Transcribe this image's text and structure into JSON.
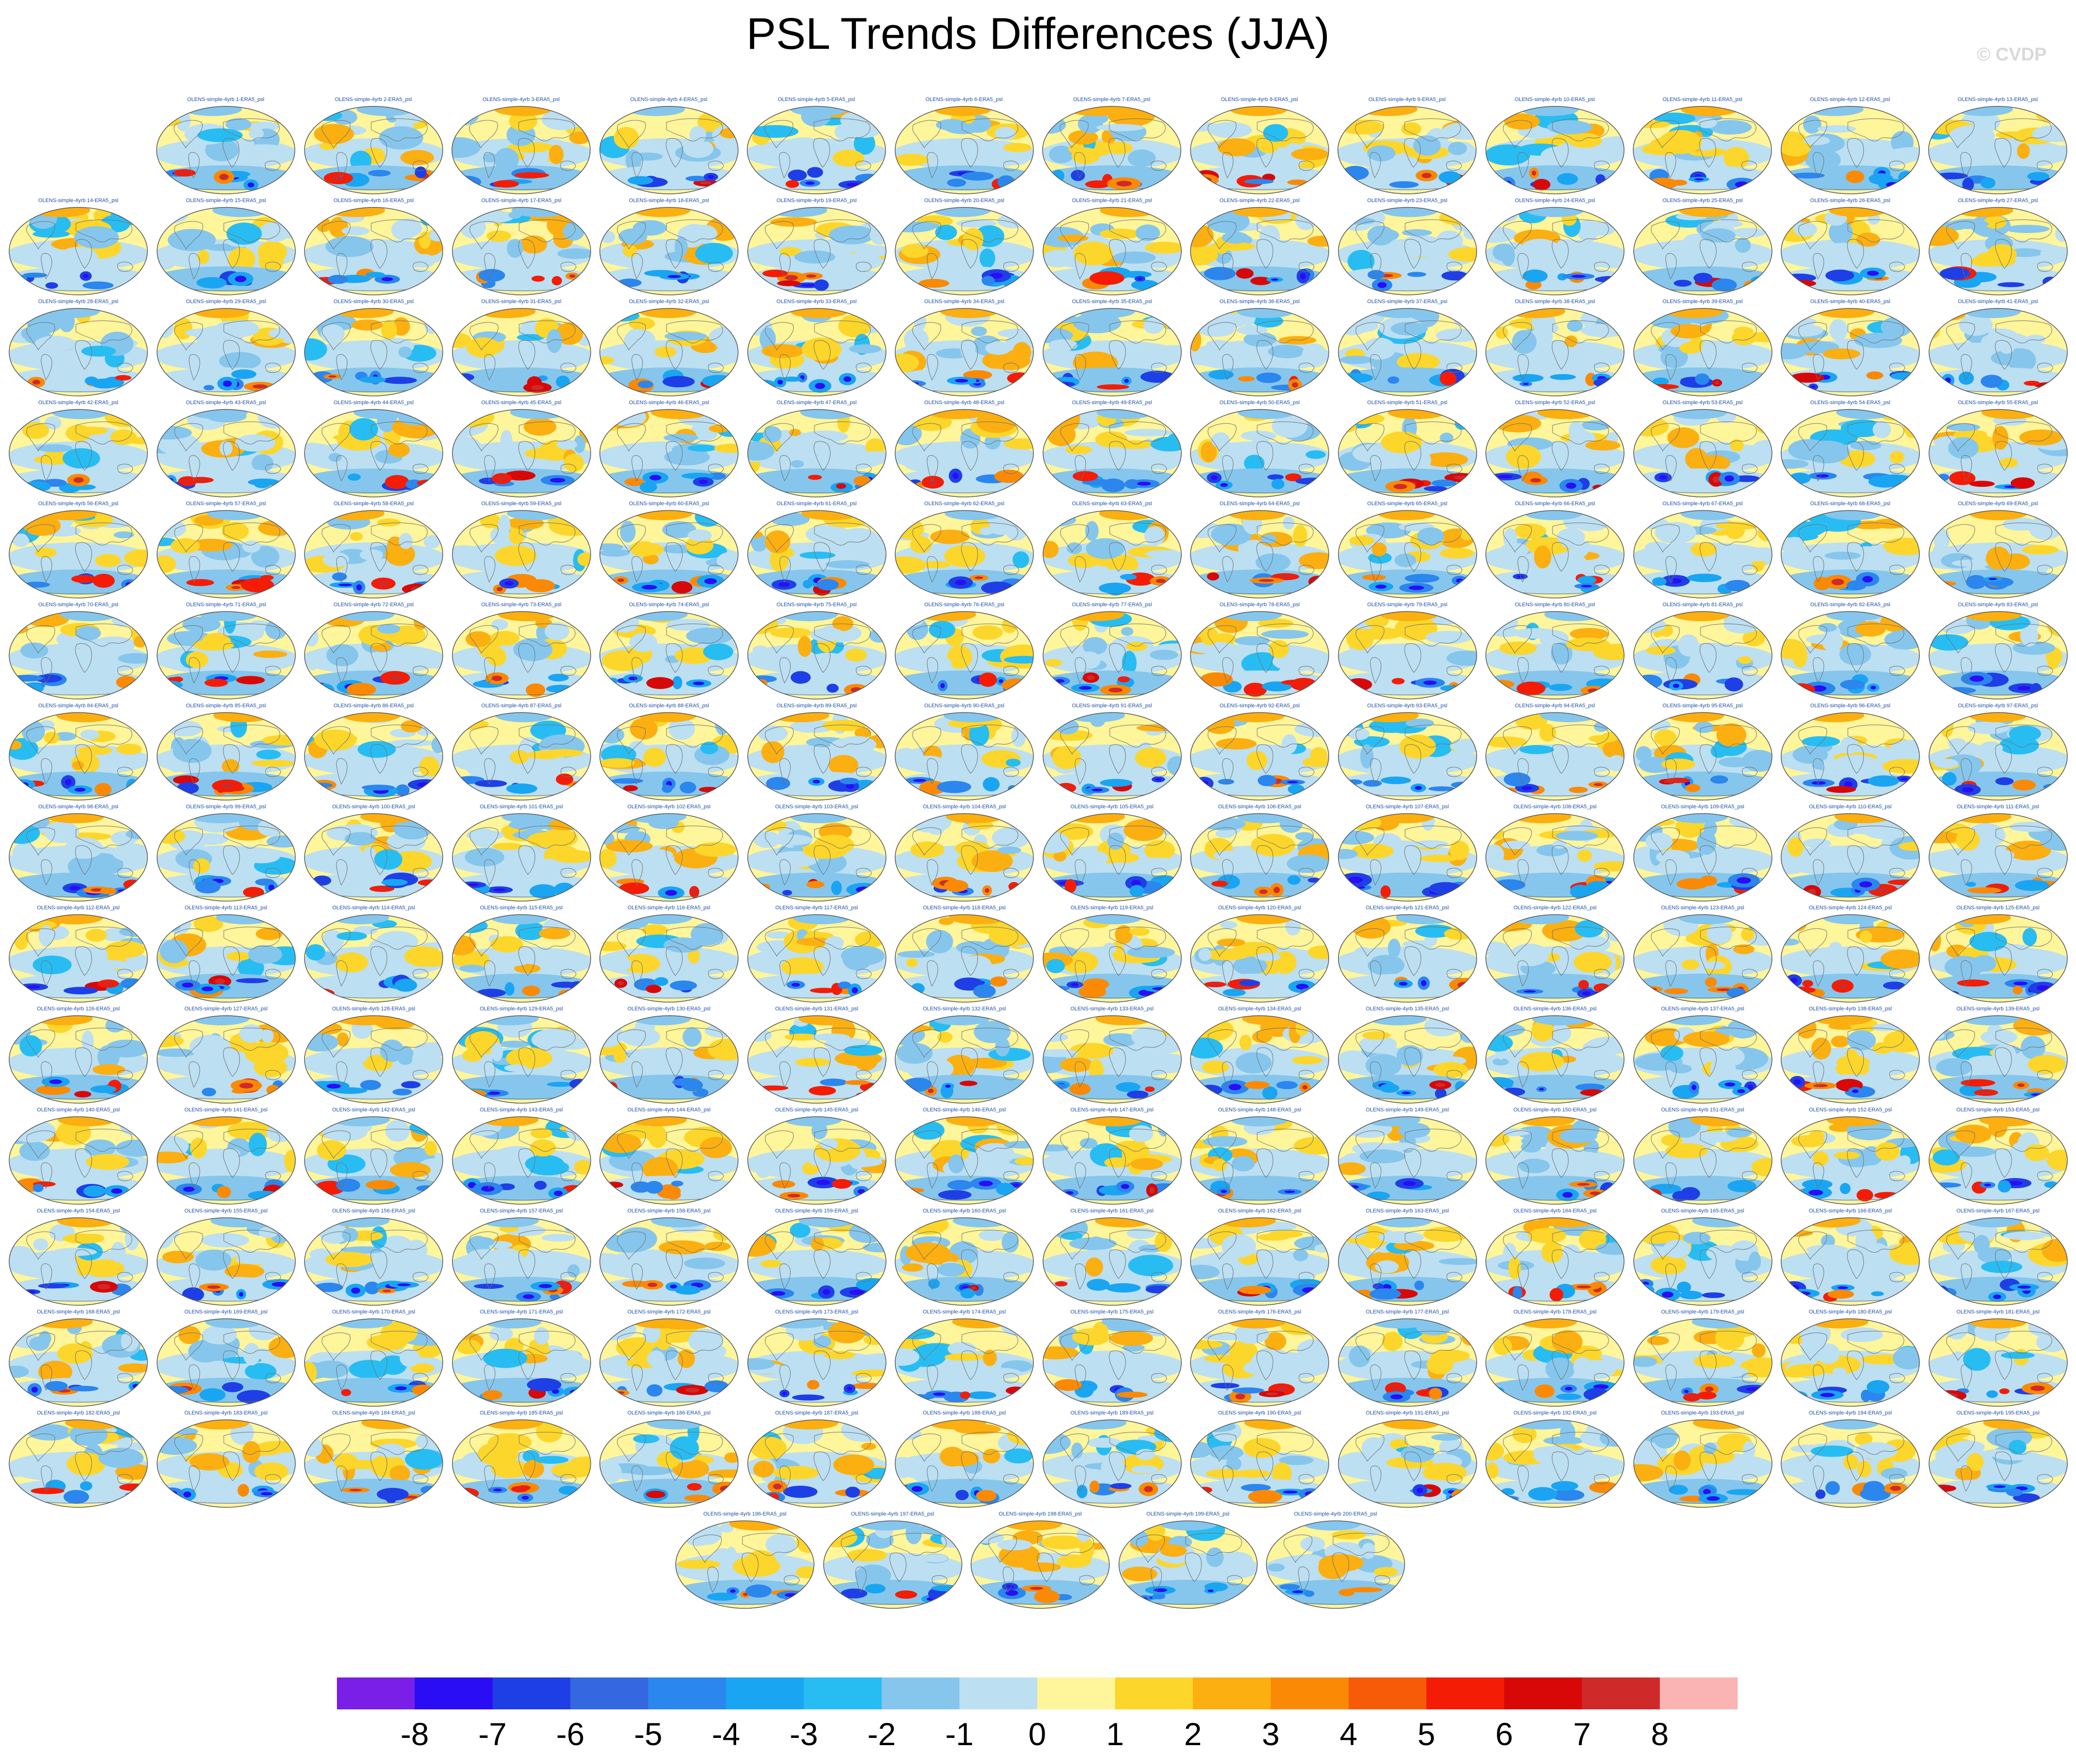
{
  "title": "PSL Trends Differences (JJA)",
  "credit": "© CVDP",
  "chart_data": {
    "type": "heatmap",
    "title": "PSL Trends Differences (JJA)",
    "panel_count": 200,
    "panel_title_prefix": "OLENS-simple-4yrb ",
    "panel_title_suffix": "-ERA5_psl",
    "map_projection": "global ellipse (Robinson-like)",
    "colorbar": {
      "ticks": [
        "-8",
        "-7",
        "-6",
        "-5",
        "-4",
        "-3",
        "-2",
        "-1",
        "0",
        "1",
        "2",
        "3",
        "4",
        "5",
        "6",
        "7",
        "8"
      ],
      "colors": [
        "#7a1fe8",
        "#2a0df5",
        "#1f3fe6",
        "#3467e0",
        "#2b86ee",
        "#1aa5f2",
        "#28bdf2",
        "#86c6ec",
        "#bcdff2",
        "#fff59a",
        "#fcd62a",
        "#fbaf10",
        "#fa8a06",
        "#f85b08",
        "#f51c05",
        "#d90808",
        "#cf2a2a",
        "#fbb4b4"
      ]
    }
  }
}
